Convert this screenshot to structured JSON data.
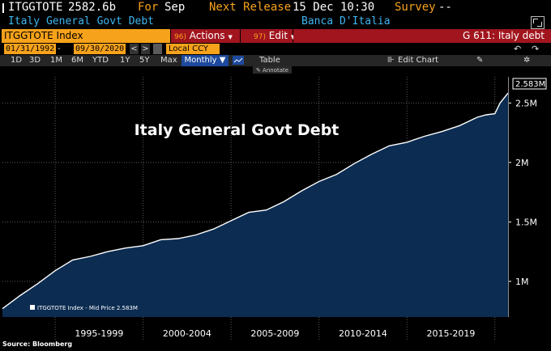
{
  "header": {
    "ticker": "ITGGTOTE",
    "value": "2582.6b",
    "for_label": "For",
    "period": "Sep",
    "next_release_label": "Next Release",
    "next_release": "15 Dec 10:30",
    "survey_label": "Survey",
    "survey_value": "--"
  },
  "subheader": {
    "name": "Italy General Govt Debt",
    "source": "Banca D'Italia"
  },
  "toolbar": {
    "ticker_index": "ITGGTOTE Index",
    "actions_num": "96)",
    "actions_label": "Actions",
    "edit_num": "97)",
    "edit_label": "Edit",
    "function": "G 611: Italy debt"
  },
  "range": {
    "start": "01/31/1992",
    "end": "09/30/2020",
    "currency": "Local CCY"
  },
  "timeframes": [
    "1D",
    "3D",
    "1M",
    "6M",
    "YTD",
    "1Y",
    "5Y",
    "Max"
  ],
  "period_select": "Monthly ▼",
  "table_label": "Table",
  "edit_chart_label": "Edit Chart",
  "annotate_label": "Annotate",
  "chart_data": {
    "type": "area",
    "title": "Italy General Govt Debt",
    "legend": "ITGGTOTE Index - Mid Price 2.583M",
    "last_label": "2.583M",
    "y_ticks": [
      "2.5M",
      "2M",
      "1.5M",
      "1M"
    ],
    "y_tick_values": [
      2500000,
      2000000,
      1500000,
      1000000
    ],
    "ylim": [
      700000,
      2720000
    ],
    "x_labels": [
      "1995-1999",
      "2000-2004",
      "2005-2009",
      "2010-2014",
      "2015-2019"
    ],
    "x_range": [
      1992.0,
      2020.75
    ],
    "x": [
      1992.0,
      1993.0,
      1994.0,
      1995.0,
      1996.0,
      1997.0,
      1998.0,
      1999.0,
      2000.0,
      2001.0,
      2002.0,
      2003.0,
      2004.0,
      2005.0,
      2006.0,
      2007.0,
      2008.0,
      2009.0,
      2010.0,
      2011.0,
      2012.0,
      2013.0,
      2014.0,
      2015.0,
      2016.0,
      2017.0,
      2018.0,
      2019.0,
      2019.5,
      2020.0,
      2020.3,
      2020.75
    ],
    "values": [
      770000,
      880000,
      980000,
      1090000,
      1180000,
      1210000,
      1250000,
      1280000,
      1300000,
      1350000,
      1360000,
      1390000,
      1440000,
      1510000,
      1580000,
      1600000,
      1670000,
      1760000,
      1840000,
      1900000,
      1990000,
      2070000,
      2140000,
      2170000,
      2220000,
      2260000,
      2310000,
      2380000,
      2400000,
      2410000,
      2500000,
      2583000
    ],
    "colors": {
      "fill": "#0c2c52",
      "line": "#ffffff",
      "grid": "#5a5a5a"
    }
  },
  "source_note": "Source: Bloomberg"
}
